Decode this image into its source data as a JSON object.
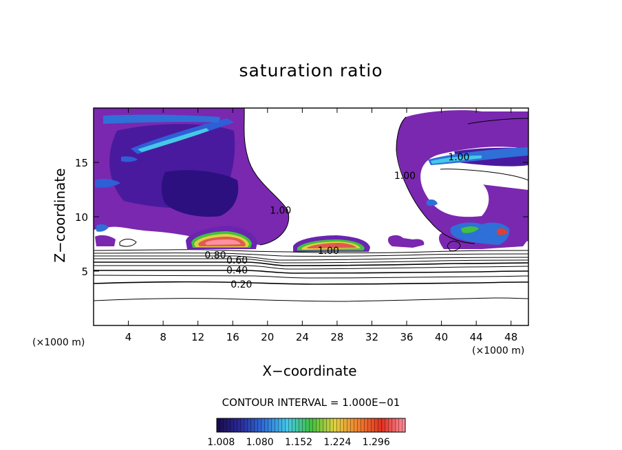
{
  "chart_data": {
    "type": "heatmap",
    "title": "saturation ratio",
    "xlabel": "X−coordinate",
    "ylabel": "Z−coordinate",
    "x_units": "(×1000 m)",
    "xlim": [
      0,
      50
    ],
    "ylim": [
      0,
      20
    ],
    "x_ticks": [
      4,
      8,
      12,
      16,
      20,
      24,
      28,
      32,
      36,
      40,
      44,
      48
    ],
    "y_ticks": [
      5,
      10,
      15
    ],
    "contour_interval_text": "CONTOUR INTERVAL = 1.000E−01",
    "contour_levels": [
      0.2,
      0.3,
      0.4,
      0.5,
      0.6,
      0.7,
      0.8,
      0.9,
      1.0
    ],
    "contour_labels": [
      {
        "text": "0.80",
        "x": 14.0,
        "z": 6.5
      },
      {
        "text": "0.60",
        "x": 16.5,
        "z": 6.0
      },
      {
        "text": "0.40",
        "x": 16.5,
        "z": 5.1
      },
      {
        "text": "0.20",
        "x": 17.0,
        "z": 3.8
      },
      {
        "text": "1.00",
        "x": 27.0,
        "z": 6.9
      },
      {
        "text": "1.00",
        "x": 21.5,
        "z": 10.6
      },
      {
        "text": "1.00",
        "x": 35.8,
        "z": 13.8
      },
      {
        "text": "1.00",
        "x": 42.0,
        "z": 15.5
      }
    ],
    "colorbar": {
      "ticks": [
        "1.008",
        "1.080",
        "1.152",
        "1.224",
        "1.296"
      ],
      "range": [
        1.0,
        1.35
      ],
      "colors": [
        "#1a0a4a",
        "#2a2a9a",
        "#2f6fd8",
        "#45c8e8",
        "#40c040",
        "#e0d040",
        "#f08030",
        "#e03020",
        "#ff90a0"
      ]
    },
    "field_colors": {
      "near_saturation": "#8a2ab8",
      "moderate": "#5a1fa8",
      "deep": "#30108a"
    }
  }
}
